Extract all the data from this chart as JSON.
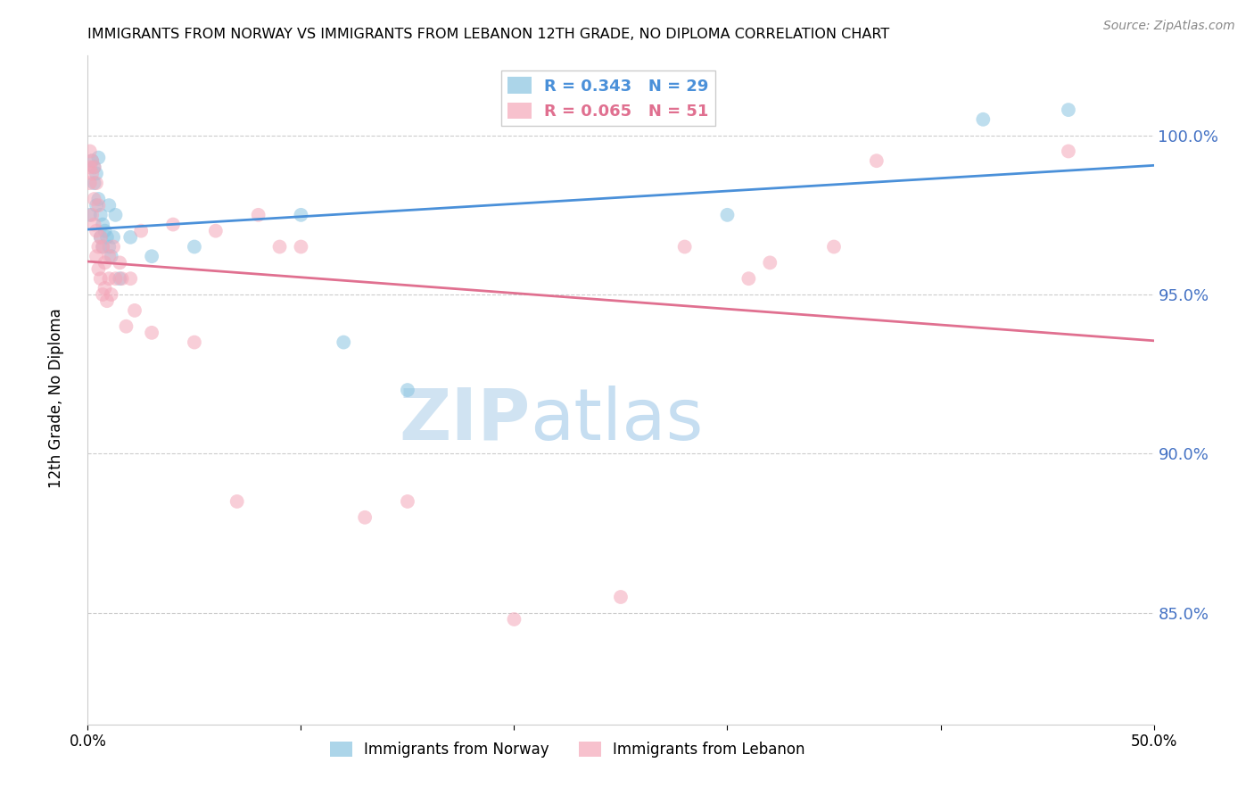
{
  "title": "IMMIGRANTS FROM NORWAY VS IMMIGRANTS FROM LEBANON 12TH GRADE, NO DIPLOMA CORRELATION CHART",
  "source": "Source: ZipAtlas.com",
  "ylabel": "12th Grade, No Diploma",
  "xlim": [
    0.0,
    0.5
  ],
  "ylim": [
    81.5,
    102.5
  ],
  "norway_R": 0.343,
  "norway_N": 29,
  "lebanon_R": 0.065,
  "lebanon_N": 51,
  "norway_color": "#89c4e1",
  "lebanon_color": "#f4a7b9",
  "norway_line_color": "#4a90d9",
  "lebanon_line_color": "#e07090",
  "norway_text_color": "#4a90d9",
  "lebanon_text_color": "#e07090",
  "ytick_color": "#4472c4",
  "norway_scatter_x": [
    0.001,
    0.002,
    0.003,
    0.003,
    0.004,
    0.004,
    0.005,
    0.005,
    0.006,
    0.006,
    0.007,
    0.007,
    0.008,
    0.009,
    0.01,
    0.01,
    0.011,
    0.012,
    0.013,
    0.015,
    0.02,
    0.03,
    0.05,
    0.1,
    0.12,
    0.15,
    0.3,
    0.42,
    0.46
  ],
  "norway_scatter_y": [
    97.5,
    99.2,
    99.0,
    98.5,
    98.8,
    97.8,
    99.3,
    98.0,
    97.5,
    96.8,
    97.2,
    96.5,
    97.0,
    96.8,
    96.5,
    97.8,
    96.2,
    96.8,
    97.5,
    95.5,
    96.8,
    96.2,
    96.5,
    97.5,
    93.5,
    92.0,
    97.5,
    100.5,
    100.8
  ],
  "lebanon_scatter_x": [
    0.001,
    0.001,
    0.001,
    0.002,
    0.002,
    0.002,
    0.003,
    0.003,
    0.003,
    0.004,
    0.004,
    0.004,
    0.005,
    0.005,
    0.005,
    0.006,
    0.006,
    0.007,
    0.007,
    0.008,
    0.008,
    0.009,
    0.01,
    0.01,
    0.011,
    0.012,
    0.013,
    0.015,
    0.016,
    0.018,
    0.02,
    0.022,
    0.025,
    0.03,
    0.04,
    0.05,
    0.06,
    0.07,
    0.08,
    0.09,
    0.1,
    0.13,
    0.15,
    0.2,
    0.25,
    0.28,
    0.31,
    0.32,
    0.35,
    0.37,
    0.46
  ],
  "lebanon_scatter_y": [
    99.5,
    99.0,
    98.5,
    99.2,
    98.8,
    97.5,
    99.0,
    98.0,
    97.2,
    98.5,
    97.0,
    96.2,
    97.8,
    96.5,
    95.8,
    96.8,
    95.5,
    96.5,
    95.0,
    96.0,
    95.2,
    94.8,
    96.2,
    95.5,
    95.0,
    96.5,
    95.5,
    96.0,
    95.5,
    94.0,
    95.5,
    94.5,
    97.0,
    93.8,
    97.2,
    93.5,
    97.0,
    88.5,
    97.5,
    96.5,
    96.5,
    88.0,
    88.5,
    84.8,
    85.5,
    96.5,
    95.5,
    96.0,
    96.5,
    99.2,
    99.5
  ],
  "watermark_left": "ZIP",
  "watermark_right": "atlas",
  "legend_norway_label": "Immigrants from Norway",
  "legend_lebanon_label": "Immigrants from Lebanon",
  "grid_color": "#cccccc",
  "ytick_vals": [
    85.0,
    90.0,
    95.0,
    100.0
  ],
  "xtick_vals": [
    0.0,
    0.1,
    0.2,
    0.3,
    0.4,
    0.5
  ]
}
